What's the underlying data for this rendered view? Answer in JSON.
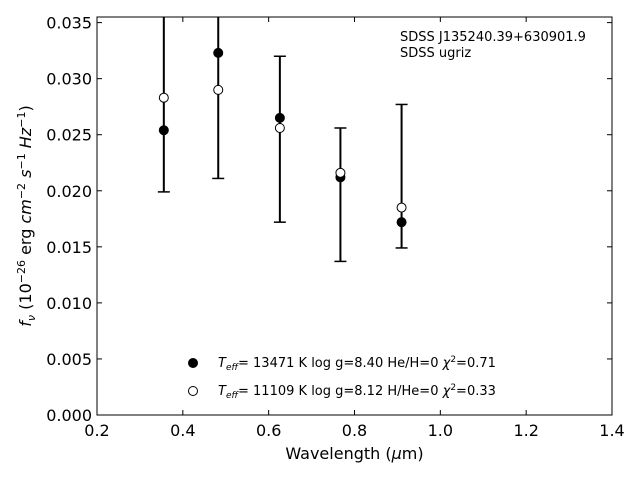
{
  "chart_data": {
    "type": "scatter",
    "xlabel": "Wavelength (μm)",
    "ylabel": "f_ν (10^-26 erg cm^-2 s^-1 Hz^-1)",
    "xlim": [
      0.2,
      1.4
    ],
    "ylim": [
      0.0,
      0.0355
    ],
    "x_ticks": [
      "0.2",
      "0.4",
      "0.6",
      "0.8",
      "1.0",
      "1.2",
      "1.4"
    ],
    "y_ticks": [
      "0.000",
      "0.005",
      "0.010",
      "0.015",
      "0.020",
      "0.025",
      "0.030",
      "0.035"
    ],
    "annotation": [
      "SDSS J135240.39+630901.9",
      "SDSS ugriz"
    ],
    "observed": {
      "x": [
        0.3557,
        0.4825,
        0.6261,
        0.7672,
        0.9097
      ],
      "y_low": [
        0.0199,
        0.0211,
        0.0172,
        0.0137,
        0.0149
      ],
      "y_high": [
        0.0355,
        0.0355,
        0.032,
        0.0256,
        0.0277
      ]
    },
    "series": [
      {
        "name": "Teff= 13471 K  log g=8.40  He/H=0  χ2=0.71",
        "marker": "filled",
        "x": [
          0.3557,
          0.4825,
          0.6261,
          0.7672,
          0.9097
        ],
        "y": [
          0.0254,
          0.0323,
          0.0265,
          0.0212,
          0.0172
        ]
      },
      {
        "name": "Teff= 11109 K  log g=8.12  H/He=0  χ2=0.33",
        "marker": "open",
        "x": [
          0.3557,
          0.4825,
          0.6261,
          0.7672,
          0.9097
        ],
        "y": [
          0.0283,
          0.029,
          0.0256,
          0.0216,
          0.0185
        ]
      }
    ],
    "legend": {
      "placement": "lower-center",
      "entries": [
        {
          "teff_value": "= 13471 K",
          "logg": "log g=8.40",
          "comp": "He/H=0",
          "chi": "=0.71"
        },
        {
          "teff_value": "= 11109 K",
          "logg": "log g=8.12",
          "comp": "H/He=0",
          "chi": "=0.33"
        }
      ]
    },
    "grid": false
  }
}
